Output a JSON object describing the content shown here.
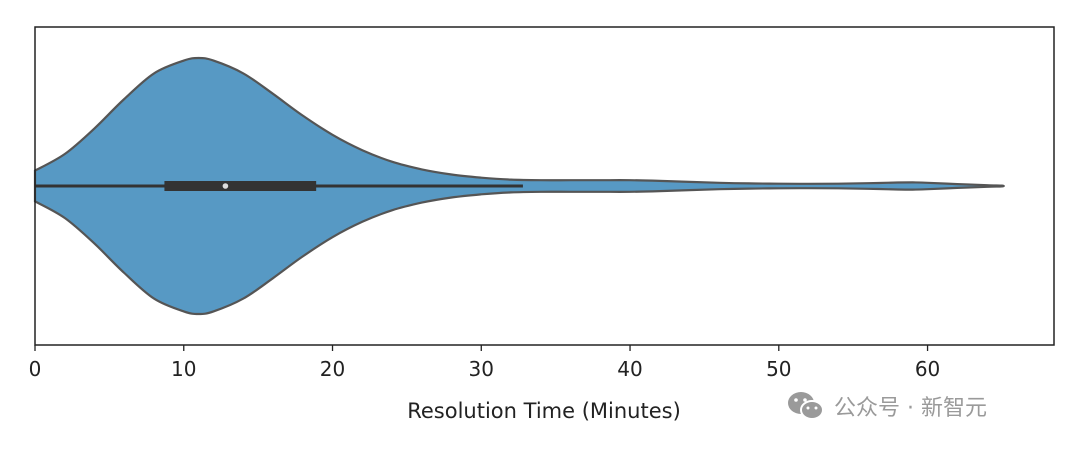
{
  "chart_data": {
    "type": "violin",
    "title": "",
    "xlabel": "Resolution Time (Minutes)",
    "ylabel": "",
    "xlim": [
      0,
      68.5
    ],
    "xticks": [
      "0",
      "10",
      "20",
      "30",
      "40",
      "50",
      "60"
    ],
    "grid": false,
    "color": "#5799c4",
    "edge_color": "#555555",
    "box_color": "#333333",
    "median_color": "#dddddd",
    "summary": {
      "min": 0,
      "q1": 8.7,
      "median": 12.8,
      "q3": 18.9,
      "whisker_high": 32.8,
      "max": 65
    },
    "density": {
      "x": [
        0,
        2,
        4,
        6,
        8,
        10,
        11,
        12,
        14,
        16,
        18,
        20,
        22,
        24,
        26,
        28,
        30,
        32,
        34,
        36,
        38,
        40,
        42,
        44,
        46,
        48,
        50,
        52,
        54,
        56,
        58,
        59,
        60,
        62,
        64,
        65
      ],
      "relative_width": [
        0.12,
        0.25,
        0.45,
        0.68,
        0.88,
        0.98,
        1.0,
        0.98,
        0.88,
        0.72,
        0.55,
        0.4,
        0.28,
        0.19,
        0.13,
        0.09,
        0.065,
        0.05,
        0.045,
        0.045,
        0.045,
        0.045,
        0.04,
        0.032,
        0.025,
        0.02,
        0.018,
        0.017,
        0.018,
        0.022,
        0.027,
        0.028,
        0.025,
        0.015,
        0.006,
        0.003
      ]
    }
  },
  "watermark": {
    "icon": "wechat-icon",
    "text": "公众号 · 新智元"
  }
}
